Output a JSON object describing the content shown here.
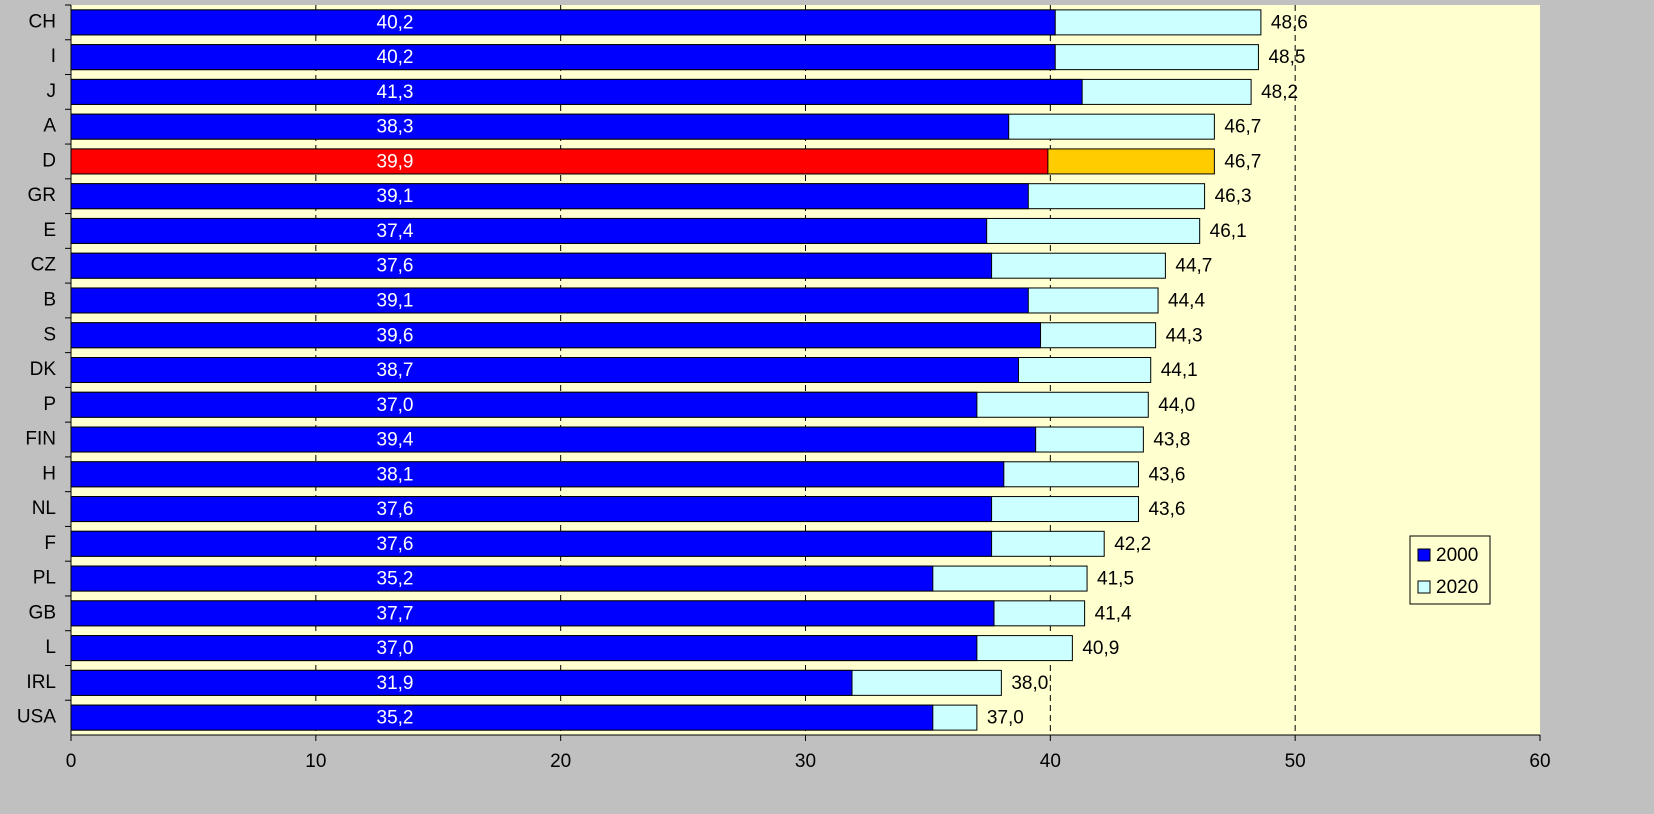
{
  "chart_data": {
    "type": "bar",
    "orientation": "horizontal",
    "overlap": true,
    "categories": [
      "CH",
      "I",
      "J",
      "A",
      "D",
      "GR",
      "E",
      "CZ",
      "B",
      "S",
      "DK",
      "P",
      "FIN",
      "H",
      "NL",
      "F",
      "PL",
      "GB",
      "L",
      "IRL",
      "USA"
    ],
    "series": [
      {
        "name": "2020",
        "color": "#ccffff",
        "colors": [
          "#ccffff",
          "#ccffff",
          "#ccffff",
          "#ccffff",
          "#ffcc00",
          "#ccffff",
          "#ccffff",
          "#ccffff",
          "#ccffff",
          "#ccffff",
          "#ccffff",
          "#ccffff",
          "#ccffff",
          "#ccffff",
          "#ccffff",
          "#ccffff",
          "#ccffff",
          "#ccffff",
          "#ccffff",
          "#ccffff",
          "#ccffff"
        ],
        "values": [
          48.6,
          48.5,
          48.2,
          46.7,
          46.7,
          46.3,
          46.1,
          44.7,
          44.4,
          44.3,
          44.1,
          44.0,
          43.8,
          43.6,
          43.6,
          42.2,
          41.5,
          41.4,
          40.9,
          38.0,
          37.0
        ],
        "value_labels": [
          "48,6",
          "48,5",
          "48,2",
          "46,7",
          "46,7",
          "46,3",
          "46,1",
          "44,7",
          "44,4",
          "44,3",
          "44,1",
          "44,0",
          "43,8",
          "43,6",
          "43,6",
          "42,2",
          "41,5",
          "41,4",
          "40,9",
          "38,0",
          "37,0"
        ]
      },
      {
        "name": "2000",
        "color": "#0000ff",
        "colors": [
          "#0000ff",
          "#0000ff",
          "#0000ff",
          "#0000ff",
          "#ff0000",
          "#0000ff",
          "#0000ff",
          "#0000ff",
          "#0000ff",
          "#0000ff",
          "#0000ff",
          "#0000ff",
          "#0000ff",
          "#0000ff",
          "#0000ff",
          "#0000ff",
          "#0000ff",
          "#0000ff",
          "#0000ff",
          "#0000ff",
          "#0000ff"
        ],
        "values": [
          40.2,
          40.2,
          41.3,
          38.3,
          39.9,
          39.1,
          37.4,
          37.6,
          39.1,
          39.6,
          38.7,
          37.0,
          39.4,
          38.1,
          37.6,
          37.6,
          35.2,
          37.7,
          37.0,
          31.9,
          35.2
        ],
        "value_labels": [
          "40,2",
          "40,2",
          "41,3",
          "38,3",
          "39,9",
          "39,1",
          "37,4",
          "37,6",
          "39,1",
          "39,6",
          "38,7",
          "37,0",
          "39,4",
          "38,1",
          "37,6",
          "37,6",
          "35,2",
          "37,7",
          "37,0",
          "31,9",
          "35,2"
        ]
      }
    ],
    "xlim": [
      0,
      60
    ],
    "xticks": [
      0,
      10,
      20,
      30,
      40,
      50,
      60
    ],
    "grid": true,
    "legend": "right"
  }
}
